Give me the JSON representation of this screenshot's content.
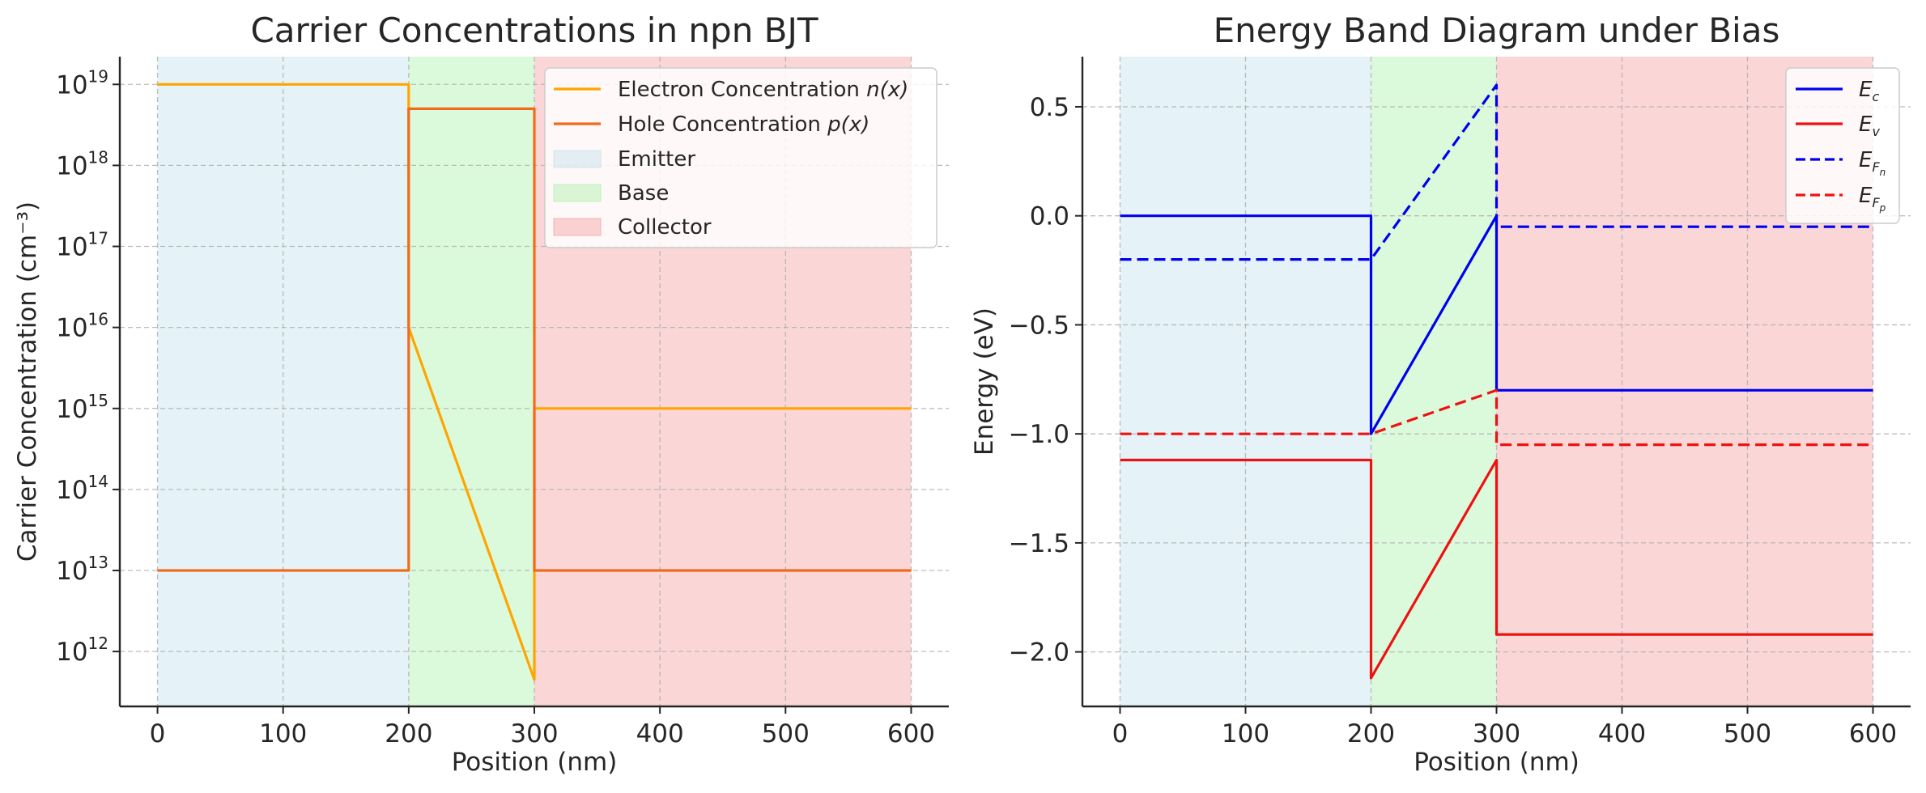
{
  "chart_data": [
    {
      "type": "line",
      "title": "Carrier Concentrations in npn BJT",
      "xlabel": "Position (nm)",
      "ylabel": "Carrier Concentration (cm⁻³)",
      "xlim": [
        -30,
        630
      ],
      "ylim": [
        210000000000.0,
        2.2e+19
      ],
      "yscale": "log",
      "xticks": [
        0,
        100,
        200,
        300,
        400,
        500,
        600
      ],
      "yticks": [
        1000000000000.0,
        10000000000000.0,
        100000000000000.0,
        1000000000000000.0,
        1e+16,
        1e+17,
        1e+18,
        1e+19
      ],
      "ytick_exponents": [
        "12",
        "13",
        "14",
        "15",
        "16",
        "17",
        "18",
        "19"
      ],
      "ytick_base": "10",
      "grid": true,
      "legend_position": "top-right",
      "regions": [
        {
          "name": "Emitter",
          "x": [
            0,
            200
          ],
          "color": "#add8e6"
        },
        {
          "name": "Base",
          "x": [
            200,
            300
          ],
          "color": "#90ee90"
        },
        {
          "name": "Collector",
          "x": [
            300,
            600
          ],
          "color": "#f08080"
        }
      ],
      "series": [
        {
          "name": "Electron Concentration",
          "name_math": "n(x)",
          "color": "#ffa500",
          "style": "solid",
          "x": [
            0,
            200,
            200,
            300,
            300,
            600
          ],
          "y": [
            1e+19,
            1e+19,
            1e+16,
            450000000000.0,
            1000000000000000.0,
            1000000000000000.0
          ]
        },
        {
          "name": "Hole Concentration",
          "name_math": "p(x)",
          "color": "#f26b1d",
          "style": "solid",
          "x": [
            0,
            200,
            200,
            300,
            300,
            600
          ],
          "y": [
            10000000000000.0,
            10000000000000.0,
            5e+18,
            5e+18,
            10000000000000.0,
            10000000000000.0
          ]
        }
      ]
    },
    {
      "type": "line",
      "title": "Energy Band Diagram under Bias",
      "xlabel": "Position (nm)",
      "ylabel": "Energy (eV)",
      "xlim": [
        -30,
        630
      ],
      "ylim": [
        -2.25,
        0.73
      ],
      "xticks": [
        0,
        100,
        200,
        300,
        400,
        500,
        600
      ],
      "yticks": [
        0.5,
        0.0,
        -0.5,
        -1.0,
        -1.5,
        -2.0
      ],
      "ytick_labels": [
        "0.5",
        "0.0",
        "−0.5",
        "−1.0",
        "−1.5",
        "−2.0"
      ],
      "grid": true,
      "legend_position": "top-right",
      "regions": [
        {
          "name": "Emitter",
          "x": [
            0,
            200
          ],
          "color": "#add8e6"
        },
        {
          "name": "Base",
          "x": [
            200,
            300
          ],
          "color": "#90ee90"
        },
        {
          "name": "Collector",
          "x": [
            300,
            600
          ],
          "color": "#f08080"
        }
      ],
      "series": [
        {
          "name": "E",
          "sub": "c",
          "color": "#0000ee",
          "style": "solid",
          "x": [
            0,
            200,
            200,
            300,
            300,
            600
          ],
          "y": [
            0.0,
            0.0,
            -1.0,
            0.0,
            -0.8,
            -0.8
          ]
        },
        {
          "name": "E",
          "sub": "v",
          "color": "#ee1111",
          "style": "solid",
          "x": [
            0,
            200,
            200,
            300,
            300,
            600
          ],
          "y": [
            -1.12,
            -1.12,
            -2.12,
            -1.12,
            -1.92,
            -1.92
          ]
        },
        {
          "name": "E",
          "sub": "Fn",
          "color": "#0000ee",
          "style": "dashed",
          "x": [
            0,
            200,
            300,
            300,
            600
          ],
          "y": [
            -0.2,
            -0.2,
            0.6,
            -0.05,
            -0.05
          ]
        },
        {
          "name": "E",
          "sub": "Fp",
          "color": "#ee1111",
          "style": "dashed",
          "x": [
            0,
            200,
            300,
            300,
            600
          ],
          "y": [
            -1.0,
            -1.0,
            -0.8,
            -1.05,
            -1.05
          ]
        }
      ]
    }
  ]
}
